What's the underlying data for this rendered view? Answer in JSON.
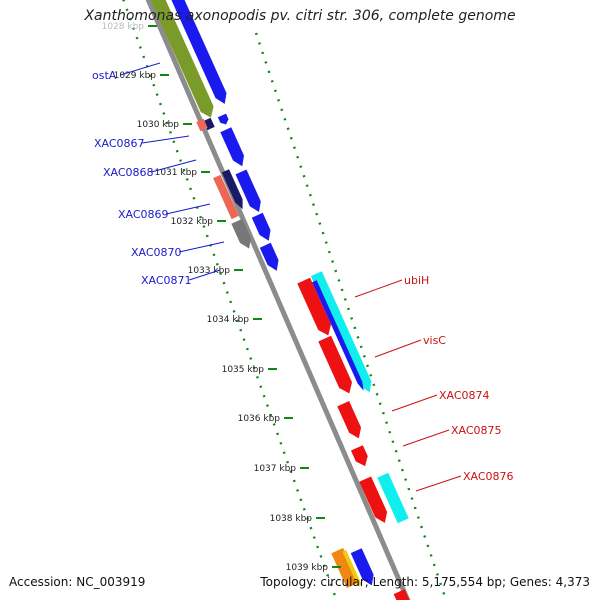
{
  "title": "Xanthomonas axonopodis pv. citri str. 306, complete genome",
  "footer": {
    "accession": "Accession: NC_003919",
    "summary": "Topology: circular; Length: 5,175,554 bp; Genes: 4,373"
  },
  "colors": {
    "backbone": "#8c8c8c",
    "ticks": "#118811",
    "forward_gene": "#1a1aee",
    "reverse_gene": "#ee1111",
    "cyan_gene": "#11eeee",
    "olive_gene": "#7a9a2a",
    "navy_gene": "#1a1a66",
    "gray_gene": "#777777",
    "salmon_gene": "#ee6655",
    "orange_gene": "#ee8811",
    "left_label": "#1a1acc",
    "right_label": "#cc1111"
  },
  "kbp_ticks": [
    {
      "label": "1028 kbp",
      "faded": true
    },
    {
      "label": "1029 kbp"
    },
    {
      "label": "1030 kbp"
    },
    {
      "label": "1031 kbp"
    },
    {
      "label": "1032 kbp"
    },
    {
      "label": "1033 kbp"
    },
    {
      "label": "1034 kbp"
    },
    {
      "label": "1035 kbp"
    },
    {
      "label": "1036 kbp"
    },
    {
      "label": "1037 kbp"
    },
    {
      "label": "1038 kbp"
    },
    {
      "label": "1039 kbp"
    }
  ],
  "left_labels": [
    "ostA",
    "XAC0867",
    "XAC0868",
    "XAC0869",
    "XAC0870",
    "XAC0871"
  ],
  "right_labels": [
    "ubiH",
    "visC",
    "XAC0874",
    "XAC0875",
    "XAC0876"
  ]
}
